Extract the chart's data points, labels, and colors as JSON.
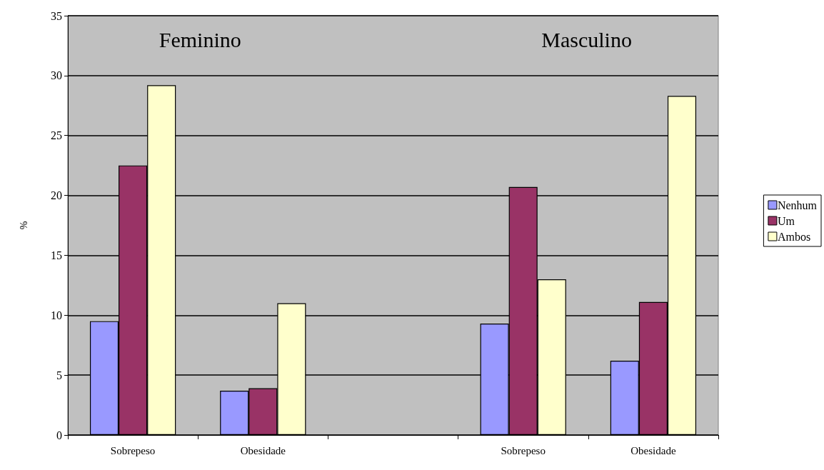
{
  "chart_data": {
    "type": "bar",
    "ylabel": "%",
    "categories": [
      "Sobrepeso",
      "Obesidade",
      null,
      "Sobrepeso",
      "Obesidade"
    ],
    "series": [
      {
        "name": "Nenhum",
        "color": "#9999ff",
        "values": [
          9.5,
          3.7,
          null,
          9.3,
          6.2
        ]
      },
      {
        "name": "Um",
        "color": "#993366",
        "values": [
          22.5,
          3.9,
          null,
          20.7,
          11.1
        ]
      },
      {
        "name": "Ambos",
        "color": "#ffffcc",
        "values": [
          29.2,
          11.0,
          null,
          13.0,
          28.3
        ]
      }
    ],
    "annotations": [
      "Feminino",
      "Masculino"
    ],
    "ylim": [
      0,
      35
    ],
    "yticks": [
      0,
      5,
      10,
      15,
      20,
      25,
      30,
      35
    ],
    "grid": "y",
    "legend": "right"
  }
}
